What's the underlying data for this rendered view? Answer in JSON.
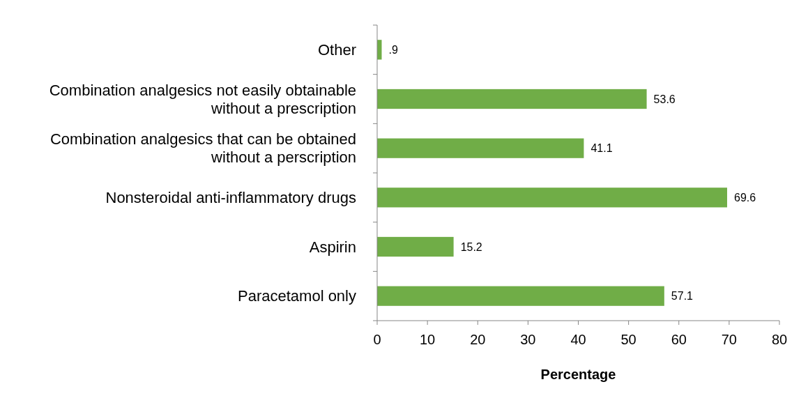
{
  "chart_data": {
    "type": "bar",
    "orientation": "horizontal",
    "xlabel": "Percentage",
    "categories": [
      "Other",
      "Combination analgesics not easily obtainable without a prescription",
      "Combination analgesics that can be obtained without a perscription",
      "Nonsteroidal anti-inflammatory drugs",
      "Aspirin",
      "Paracetamol only"
    ],
    "values": [
      0.9,
      53.6,
      41.1,
      69.6,
      15.2,
      57.1
    ],
    "value_labels": [
      ".9",
      "53.6",
      "41.1",
      "69.6",
      "15.2",
      "57.1"
    ],
    "color": "#70ad47",
    "xlim": [
      0,
      80
    ],
    "xticks": [
      0,
      10,
      20,
      30,
      40,
      50,
      60,
      70,
      80
    ],
    "grid": false
  }
}
